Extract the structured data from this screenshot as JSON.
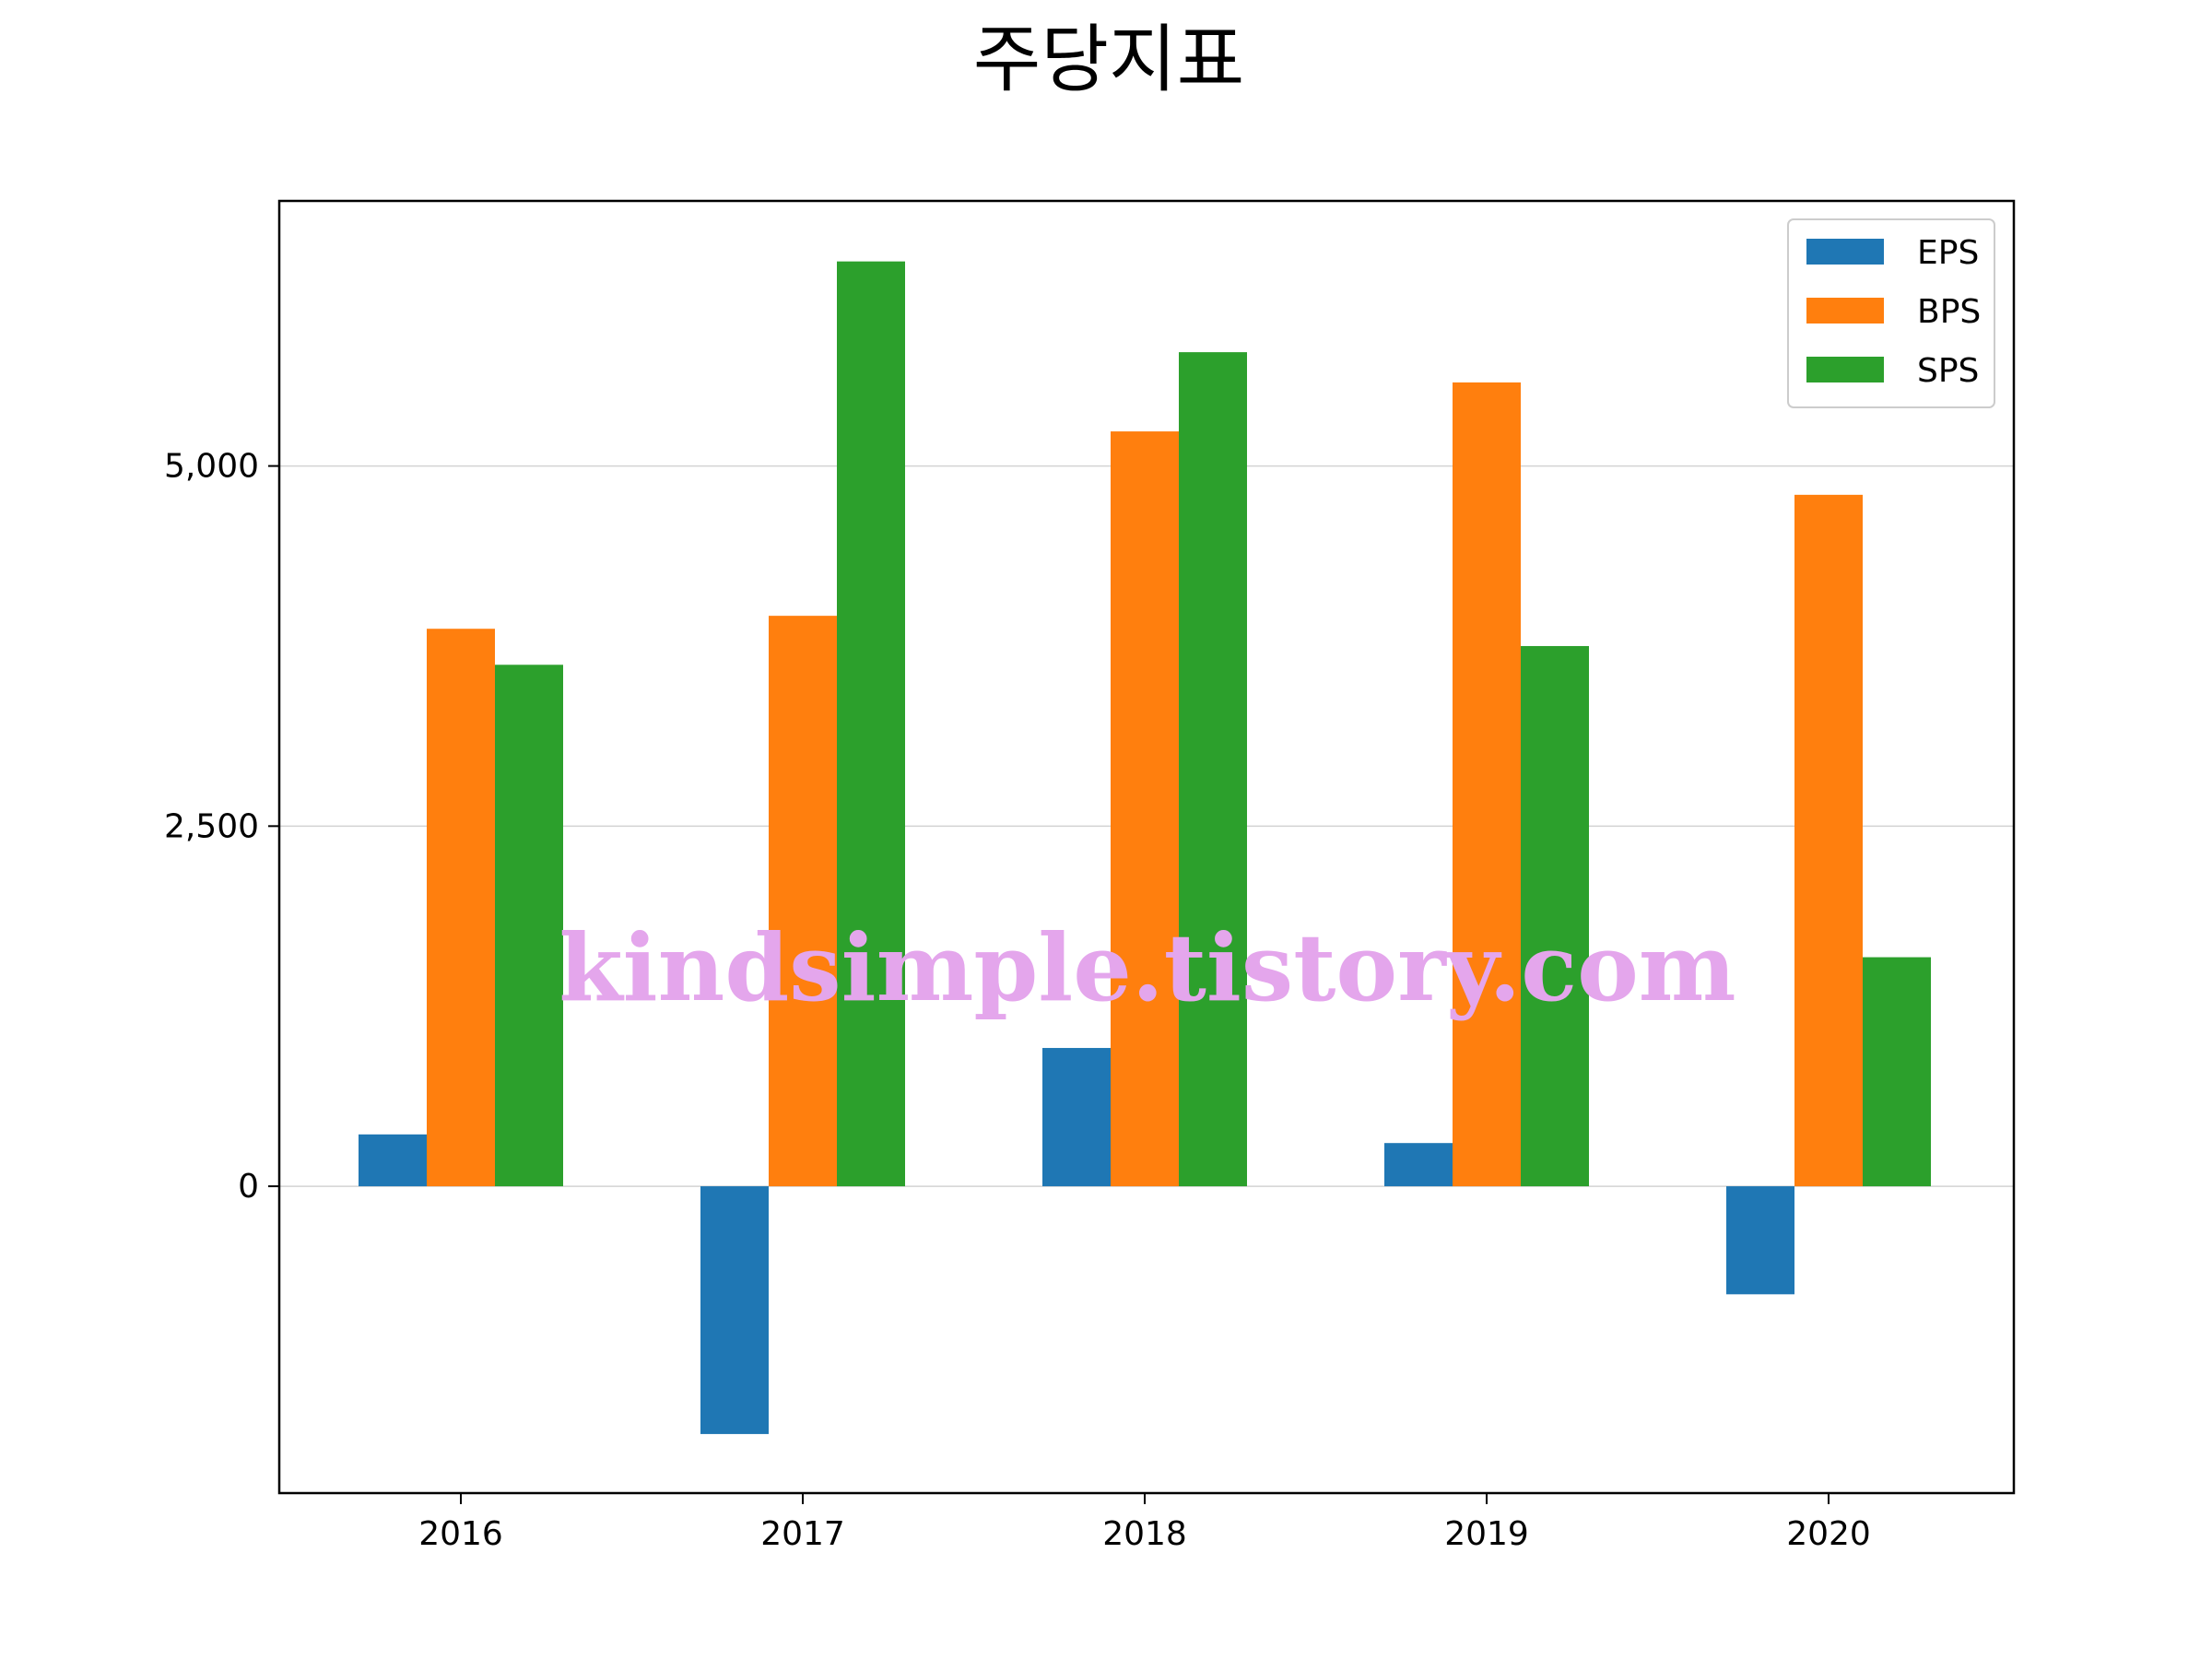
{
  "chart_data": {
    "type": "bar",
    "title": "주당지표",
    "categories": [
      "2016",
      "2017",
      "2018",
      "2019",
      "2020"
    ],
    "series": [
      {
        "name": "EPS",
        "color": "#1f77b4",
        "values": [
          360,
          -1720,
          960,
          300,
          -750
        ]
      },
      {
        "name": "BPS",
        "color": "#ff7f0e",
        "values": [
          3870,
          3960,
          5240,
          5580,
          4800
        ]
      },
      {
        "name": "SPS",
        "color": "#2ca02c",
        "values": [
          3620,
          6420,
          5790,
          3750,
          1590
        ]
      }
    ],
    "ylim": [
      -2130,
      6840
    ],
    "yticks": [
      0,
      2500,
      5000
    ],
    "ytick_labels": [
      "0",
      "2,500",
      "5,000"
    ],
    "grid": "horizontal",
    "legend_position": "top-right"
  },
  "watermark": "kindsimple.tistory.com"
}
